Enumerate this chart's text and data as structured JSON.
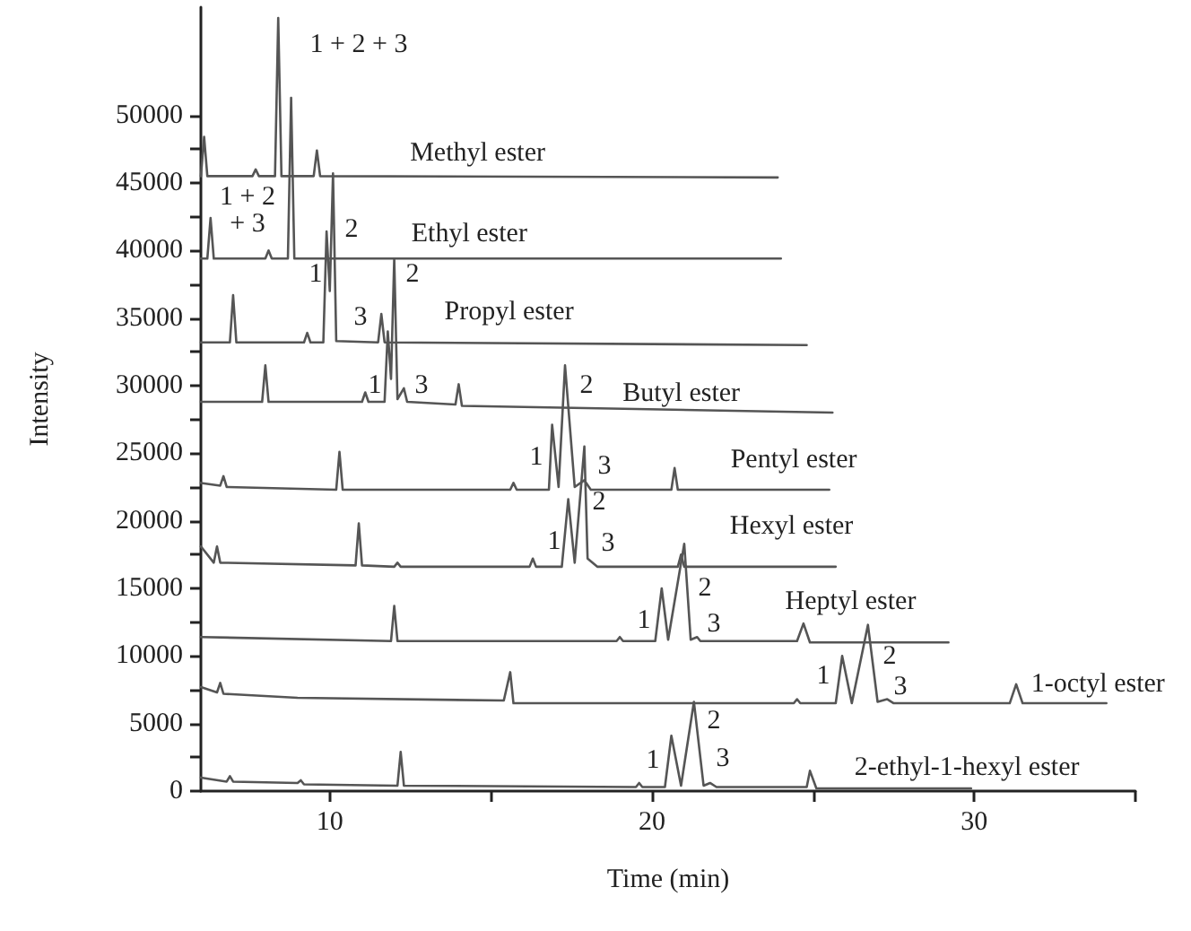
{
  "chart_data": {
    "type": "line",
    "xlabel": "Time (min)",
    "ylabel": "Intensity",
    "xlim": [
      6,
      35
    ],
    "xticks": [
      10,
      {
        "value": 15,
        "label": null
      },
      20,
      {
        "value": 25,
        "label": null
      },
      30,
      {
        "value": 35,
        "label": null
      }
    ],
    "ylim": [
      0,
      58000
    ],
    "yticks": [
      0,
      {
        "value": 2500,
        "label": null
      },
      5000,
      {
        "value": 7500,
        "label": null
      },
      10000,
      {
        "value": 12500,
        "label": null
      },
      15000,
      {
        "value": 17500,
        "label": null
      },
      20000,
      {
        "value": 22500,
        "label": null
      },
      25000,
      {
        "value": 27500,
        "label": null
      },
      30000,
      {
        "value": 32500,
        "label": null
      },
      35000,
      {
        "value": 37500,
        "label": null
      },
      40000,
      {
        "value": 42500,
        "label": null
      },
      45000,
      {
        "value": 47500,
        "label": null
      },
      50000
    ],
    "marker": "none",
    "line_style": "solid",
    "series": [
      {
        "name": "Methyl ester",
        "color": "#555555",
        "x": [
          6.0,
          6.1,
          6.2,
          7.6,
          7.7,
          7.8,
          8.3,
          8.4,
          8.5,
          9.5,
          9.6,
          9.7,
          23.9
        ],
        "values": [
          45500,
          48400,
          45500,
          45500,
          46000,
          45500,
          45500,
          57200,
          45500,
          45500,
          47400,
          45500,
          45400
        ]
      },
      {
        "name": "Ethyl ester",
        "color": "#555555",
        "x": [
          6.0,
          6.2,
          6.3,
          6.4,
          8.0,
          8.1,
          8.2,
          8.7,
          8.8,
          8.9,
          24.0
        ],
        "values": [
          39400,
          39400,
          42400,
          39400,
          39400,
          40000,
          39400,
          39400,
          51300,
          39400,
          39400
        ]
      },
      {
        "name": "Propyl ester",
        "color": "#555555",
        "x": [
          6.0,
          6.9,
          7.0,
          7.1,
          9.2,
          9.3,
          9.4,
          9.8,
          9.9,
          10.0,
          10.1,
          10.2,
          11.5,
          11.6,
          11.7,
          24.8
        ],
        "values": [
          33200,
          33200,
          36700,
          33200,
          33200,
          33900,
          33200,
          33200,
          41400,
          37000,
          45700,
          33300,
          33200,
          35300,
          33200,
          33000
        ]
      },
      {
        "name": "Butyl ester",
        "color": "#555555",
        "x": [
          6.0,
          7.9,
          8.0,
          8.1,
          11.0,
          11.1,
          11.2,
          11.7,
          11.8,
          11.9,
          12.0,
          12.1,
          12.3,
          12.4,
          13.9,
          14.0,
          14.1,
          25.6
        ],
        "values": [
          28800,
          28800,
          31500,
          28800,
          28800,
          29500,
          28800,
          28800,
          34000,
          30500,
          39400,
          29000,
          29800,
          28800,
          28600,
          30100,
          28500,
          28000
        ]
      },
      {
        "name": "Pentyl ester",
        "color": "#555555",
        "x": [
          6.0,
          6.6,
          6.7,
          6.8,
          10.2,
          10.3,
          10.4,
          15.6,
          15.7,
          15.8,
          16.8,
          16.9,
          17.1,
          17.3,
          17.6,
          17.9,
          18.1,
          20.6,
          20.7,
          20.8,
          25.5
        ],
        "values": [
          22800,
          22600,
          23300,
          22500,
          22300,
          25100,
          22300,
          22300,
          22800,
          22300,
          22300,
          27100,
          22500,
          31500,
          22500,
          23000,
          22300,
          22300,
          23900,
          22300,
          22300
        ]
      },
      {
        "name": "Hexyl ester",
        "color": "#555555",
        "x": [
          6.0,
          6.4,
          6.5,
          6.6,
          10.8,
          10.9,
          11.0,
          12.0,
          12.1,
          12.2,
          16.2,
          16.3,
          16.4,
          17.2,
          17.4,
          17.6,
          17.9,
          18.0,
          18.1,
          18.3,
          20.8,
          20.9,
          21.0,
          25.7
        ],
        "values": [
          18100,
          16900,
          18100,
          16900,
          16700,
          19800,
          16700,
          16600,
          16900,
          16600,
          16600,
          17200,
          16600,
          16600,
          21600,
          16900,
          25500,
          17200,
          17000,
          16600,
          16600,
          17500,
          16600,
          16600
        ]
      },
      {
        "name": "Heptyl ester",
        "color": "#555555",
        "x": [
          6.0,
          11.9,
          12.0,
          12.1,
          18.9,
          19.0,
          19.1,
          20.1,
          20.3,
          20.5,
          21.0,
          21.2,
          21.4,
          21.5,
          24.5,
          24.7,
          24.9,
          29.2
        ],
        "values": [
          11400,
          11100,
          13700,
          11100,
          11100,
          11400,
          11100,
          11100,
          15000,
          11200,
          18300,
          11200,
          11400,
          11100,
          11100,
          12400,
          11000,
          11000
        ]
      },
      {
        "name": "1-octyl ester",
        "color": "#555555",
        "x": [
          6.0,
          6.5,
          6.6,
          6.7,
          9.0,
          15.4,
          15.6,
          15.7,
          24.4,
          24.5,
          24.6,
          25.7,
          25.9,
          26.2,
          26.7,
          27.0,
          27.3,
          27.5,
          31.1,
          31.3,
          31.5,
          34.1
        ],
        "values": [
          7700,
          7300,
          8000,
          7200,
          6900,
          6700,
          8800,
          6500,
          6500,
          6800,
          6500,
          6500,
          10000,
          6500,
          12300,
          6600,
          6800,
          6500,
          6500,
          7900,
          6500,
          6500
        ]
      },
      {
        "name": "2-ethyl-1-hexyl ester",
        "color": "#555555",
        "x": [
          6.0,
          6.8,
          6.9,
          7.0,
          9.0,
          9.1,
          9.2,
          12.1,
          12.2,
          12.3,
          19.5,
          19.6,
          19.7,
          20.4,
          20.6,
          20.9,
          21.3,
          21.6,
          21.8,
          22.0,
          24.8,
          24.9,
          25.1,
          29.9
        ],
        "values": [
          1000,
          700,
          1100,
          700,
          600,
          800,
          500,
          400,
          2900,
          400,
          300,
          600,
          300,
          300,
          4100,
          400,
          6600,
          400,
          600,
          300,
          300,
          1500,
          200,
          200
        ]
      }
    ],
    "annotations": [
      "1 + 2 + 3",
      "1 + 2",
      "+ 3",
      "2",
      "1",
      "2",
      "3",
      "1",
      "3",
      "2",
      "1",
      "3",
      "2",
      "1",
      "3",
      "1",
      "2",
      "3",
      "1",
      "2",
      "3",
      "1",
      "2",
      "3"
    ]
  }
}
